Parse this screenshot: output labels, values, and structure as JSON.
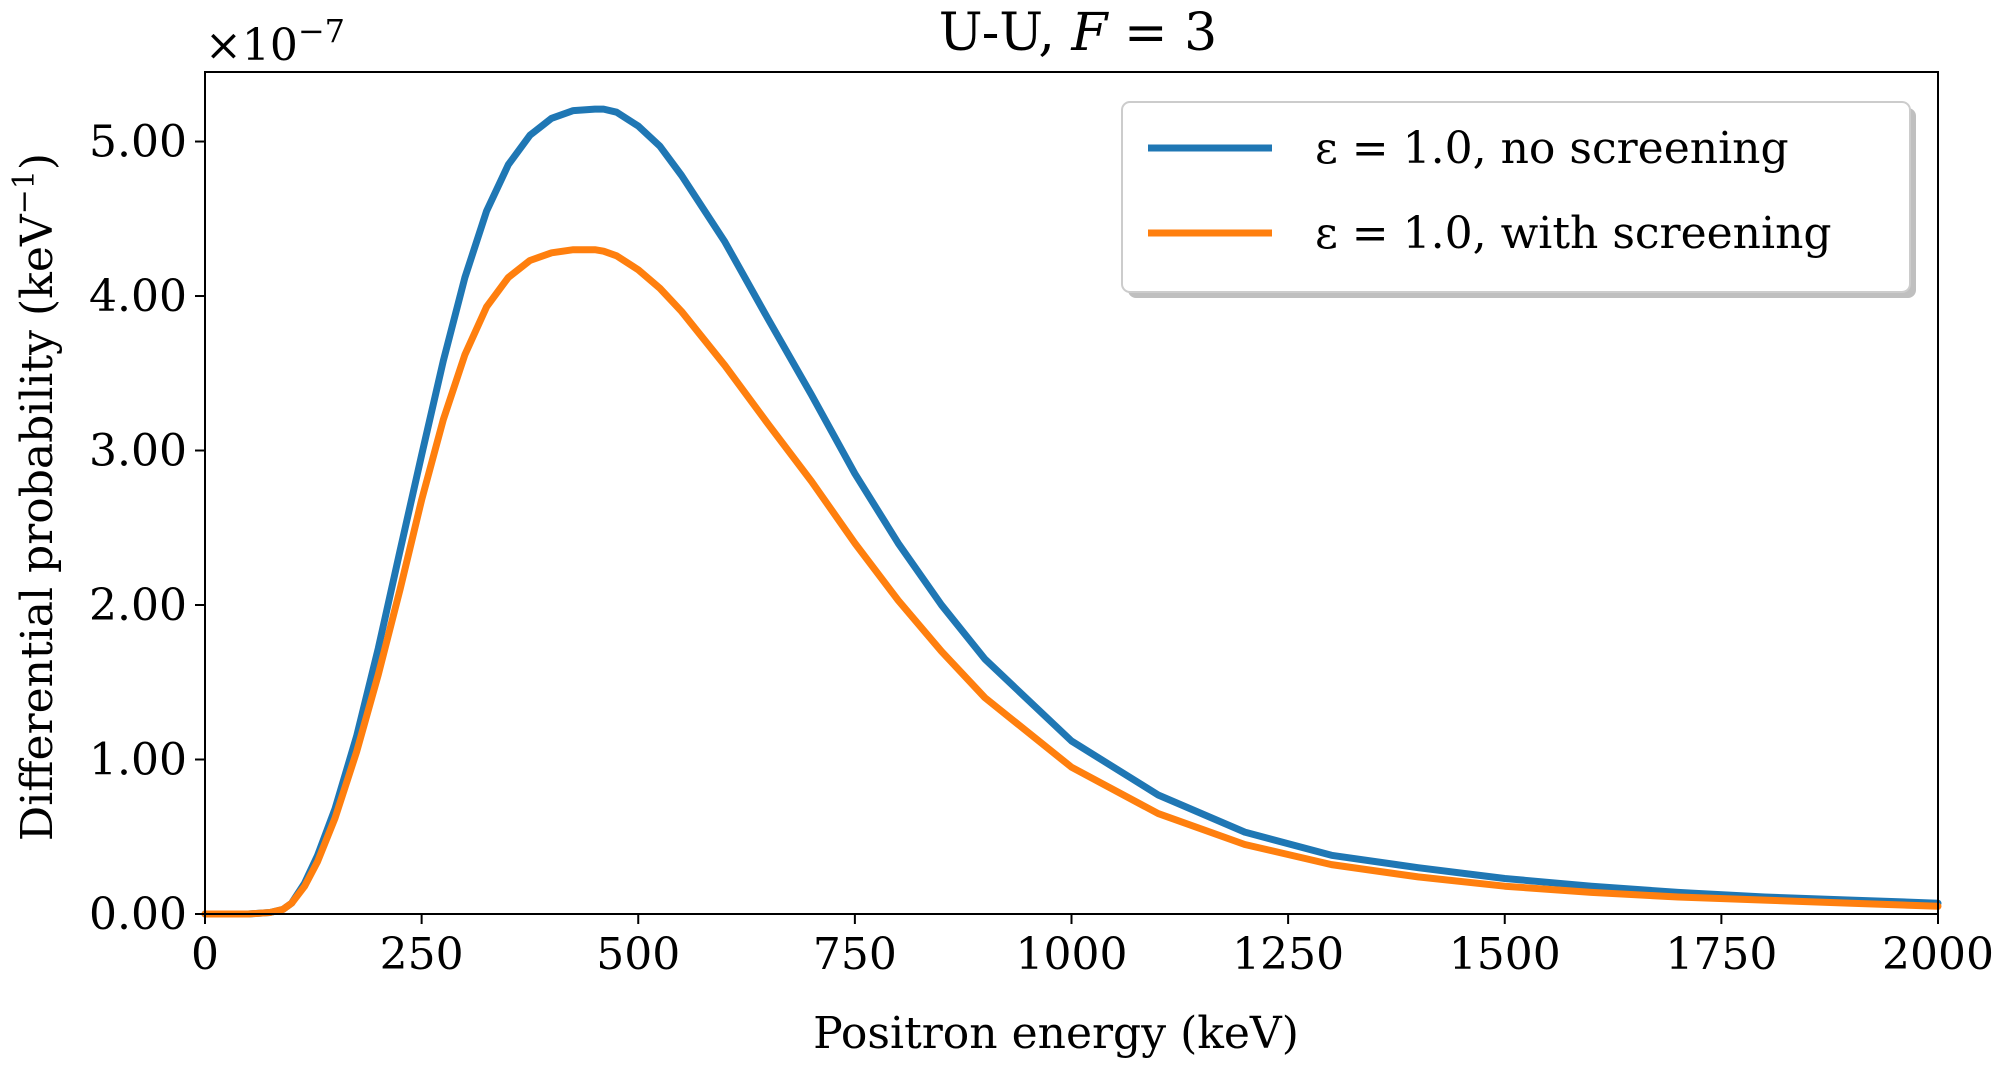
{
  "chart_data": {
    "type": "line",
    "title_prefix": "U-U, ",
    "title_var": "F",
    "title_eq": " = 3",
    "xlabel": "Positron energy (keV)",
    "ylabel_main": "Differential probability (keV",
    "ylabel_sup": "−1",
    "ylabel_close": ")",
    "offset_base": "×10",
    "offset_exp": "−7",
    "xlim": [
      0,
      2000
    ],
    "ylim": [
      0,
      5.45
    ],
    "xticks": [
      0,
      250,
      500,
      750,
      1000,
      1250,
      1500,
      1750,
      2000
    ],
    "xtick_labels": [
      "0",
      "250",
      "500",
      "750",
      "1000",
      "1250",
      "1500",
      "1750",
      "2000"
    ],
    "yticks": [
      0,
      1,
      2,
      3,
      4,
      5
    ],
    "ytick_labels": [
      "0.00",
      "1.00",
      "2.00",
      "3.00",
      "4.00",
      "5.00"
    ],
    "grid": false,
    "legend_position": "top-right",
    "series": [
      {
        "name": "ε = 1.0, no screening",
        "color": "#1f77b4",
        "x": [
          0,
          50,
          75,
          90,
          100,
          115,
          130,
          150,
          175,
          200,
          225,
          250,
          275,
          300,
          325,
          350,
          375,
          400,
          425,
          450,
          460,
          475,
          500,
          525,
          550,
          600,
          650,
          700,
          750,
          800,
          850,
          900,
          1000,
          1100,
          1200,
          1300,
          1400,
          1500,
          1600,
          1700,
          1800,
          1900,
          2000
        ],
        "y": [
          0.0,
          0.0,
          0.01,
          0.03,
          0.07,
          0.2,
          0.38,
          0.68,
          1.15,
          1.72,
          2.35,
          2.97,
          3.58,
          4.12,
          4.55,
          4.85,
          5.04,
          5.15,
          5.2,
          5.21,
          5.21,
          5.19,
          5.1,
          4.97,
          4.78,
          4.35,
          3.85,
          3.36,
          2.85,
          2.4,
          2.0,
          1.65,
          1.12,
          0.77,
          0.53,
          0.38,
          0.3,
          0.23,
          0.18,
          0.14,
          0.11,
          0.09,
          0.07
        ]
      },
      {
        "name": "ε = 1.0, with screening",
        "color": "#ff7f0e",
        "x": [
          0,
          50,
          75,
          90,
          100,
          115,
          130,
          150,
          175,
          200,
          225,
          250,
          275,
          300,
          325,
          350,
          375,
          400,
          425,
          450,
          460,
          475,
          500,
          525,
          550,
          600,
          650,
          700,
          750,
          800,
          850,
          900,
          1000,
          1100,
          1200,
          1300,
          1400,
          1500,
          1600,
          1700,
          1800,
          1900,
          2000
        ],
        "y": [
          0.0,
          0.0,
          0.01,
          0.03,
          0.07,
          0.18,
          0.34,
          0.62,
          1.05,
          1.55,
          2.1,
          2.68,
          3.2,
          3.62,
          3.93,
          4.12,
          4.23,
          4.28,
          4.3,
          4.3,
          4.29,
          4.26,
          4.17,
          4.05,
          3.9,
          3.55,
          3.17,
          2.8,
          2.4,
          2.03,
          1.7,
          1.4,
          0.95,
          0.65,
          0.45,
          0.32,
          0.24,
          0.18,
          0.14,
          0.11,
          0.09,
          0.07,
          0.05
        ]
      }
    ]
  }
}
